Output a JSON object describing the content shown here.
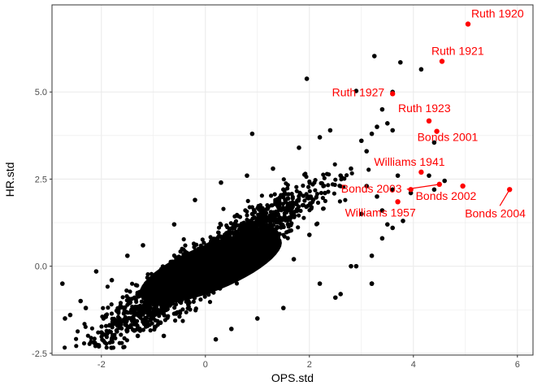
{
  "chart_data": {
    "type": "scatter",
    "xlabel": "OPS.std",
    "ylabel": "HR.std",
    "xlim": [
      -2.95,
      6.3
    ],
    "ylim": [
      -2.55,
      7.5
    ],
    "x_ticks": [
      -2,
      0,
      2,
      4,
      6
    ],
    "y_ticks": [
      -2.5,
      0.0,
      2.5,
      5.0
    ],
    "x_tick_labels": [
      "-2",
      "0",
      "2",
      "4",
      "6"
    ],
    "y_tick_labels": [
      "-2.5",
      "0.0",
      "2.5",
      "5.0"
    ],
    "grid": true,
    "theme": "bw",
    "colors": {
      "bulk": "#000000",
      "highlight": "#ff0000",
      "grid": "#ebebeb",
      "panel_border": "#333333"
    },
    "series": [
      {
        "points": [
          [
            -2.7,
            -1.5
          ],
          [
            -2.75,
            -0.5
          ],
          [
            -2.6,
            -1.4
          ],
          [
            -2.4,
            -1.0
          ],
          [
            -2.3,
            -1.2
          ],
          [
            -2.05,
            -2.3
          ],
          [
            -2.0,
            -1.9
          ],
          [
            -1.8,
            -2.1
          ],
          [
            -1.3,
            -2.0
          ],
          [
            -0.8,
            -2.0
          ],
          [
            -2.1,
            -0.15
          ],
          [
            -1.8,
            -0.4
          ],
          [
            -1.5,
            0.3
          ],
          [
            -1.2,
            0.6
          ],
          [
            -0.6,
            1.2
          ],
          [
            -0.2,
            1.9
          ],
          [
            0.3,
            2.4
          ],
          [
            0.8,
            2.6
          ],
          [
            1.3,
            2.8
          ],
          [
            1.8,
            3.4
          ],
          [
            0.9,
            3.8
          ],
          [
            2.2,
            3.7
          ],
          [
            2.4,
            3.9
          ],
          [
            1.5,
            2.2
          ],
          [
            0.2,
            -2.1
          ],
          [
            0.5,
            -1.8
          ],
          [
            1.0,
            -1.5
          ],
          [
            1.5,
            -1.2
          ],
          [
            2.2,
            -0.5
          ],
          [
            2.5,
            -0.9
          ],
          [
            2.8,
            0.0
          ],
          [
            3.2,
            -0.5
          ],
          [
            3.2,
            0.3
          ],
          [
            3.4,
            0.8
          ],
          [
            3.5,
            1.2
          ],
          [
            3.4,
            1.6
          ],
          [
            3.0,
            1.5
          ],
          [
            3.3,
            2.0
          ],
          [
            3.1,
            2.3
          ],
          [
            3.6,
            2.2
          ],
          [
            3.7,
            2.6
          ],
          [
            3.0,
            3.6
          ],
          [
            3.2,
            3.8
          ],
          [
            3.1,
            3.3
          ],
          [
            3.3,
            4.0
          ],
          [
            3.5,
            4.1
          ],
          [
            3.6,
            3.9
          ],
          [
            3.4,
            4.5
          ],
          [
            3.6,
            5.0
          ],
          [
            3.75,
            5.85
          ],
          [
            4.15,
            5.65
          ],
          [
            3.25,
            6.03
          ],
          [
            2.9,
            5.03
          ],
          [
            1.95,
            5.38
          ],
          [
            4.4,
            3.55
          ],
          [
            4.3,
            2.6
          ],
          [
            4.4,
            2.2
          ],
          [
            4.6,
            2.45
          ],
          [
            3.6,
            1.1
          ],
          [
            3.8,
            1.3
          ],
          [
            3.95,
            2.1
          ],
          [
            2.9,
            0.0
          ],
          [
            2.6,
            -0.8
          ],
          [
            3.2,
            -0.5
          ],
          [
            -1.0,
            -1.5
          ],
          [
            1.7,
            0.2
          ],
          [
            2.0,
            0.9
          ],
          [
            2.3,
            2.1
          ],
          [
            2.6,
            2.6
          ],
          [
            2.8,
            2.8
          ]
        ]
      },
      {
        "name": "highlight",
        "points": [
          [
            5.05,
            6.95
          ],
          [
            4.55,
            5.88
          ],
          [
            3.6,
            4.95
          ],
          [
            4.3,
            4.17
          ],
          [
            4.45,
            3.87
          ],
          [
            4.15,
            2.7
          ],
          [
            3.95,
            2.2
          ],
          [
            4.5,
            2.35
          ],
          [
            4.95,
            2.3
          ],
          [
            3.7,
            1.85
          ],
          [
            5.85,
            2.2
          ]
        ]
      }
    ],
    "annotations": [
      {
        "label": "Ruth 1920",
        "x": 5.05,
        "y": 6.95
      },
      {
        "label": "Ruth 1921",
        "x": 4.55,
        "y": 5.88
      },
      {
        "label": "Ruth 1927",
        "x": 3.6,
        "y": 4.95
      },
      {
        "label": "Ruth 1923",
        "x": 4.3,
        "y": 4.17
      },
      {
        "label": "Bonds 2001",
        "x": 4.45,
        "y": 3.87
      },
      {
        "label": "Williams 1941",
        "x": 4.15,
        "y": 2.7
      },
      {
        "label": "Bonds 2003",
        "x": 4.5,
        "y": 2.35
      },
      {
        "label": "Bonds 2002",
        "x": 4.95,
        "y": 2.3
      },
      {
        "label": "Williams 1957",
        "x": 3.7,
        "y": 1.85
      },
      {
        "label": "Bonds 2004",
        "x": 5.85,
        "y": 2.2
      }
    ]
  }
}
